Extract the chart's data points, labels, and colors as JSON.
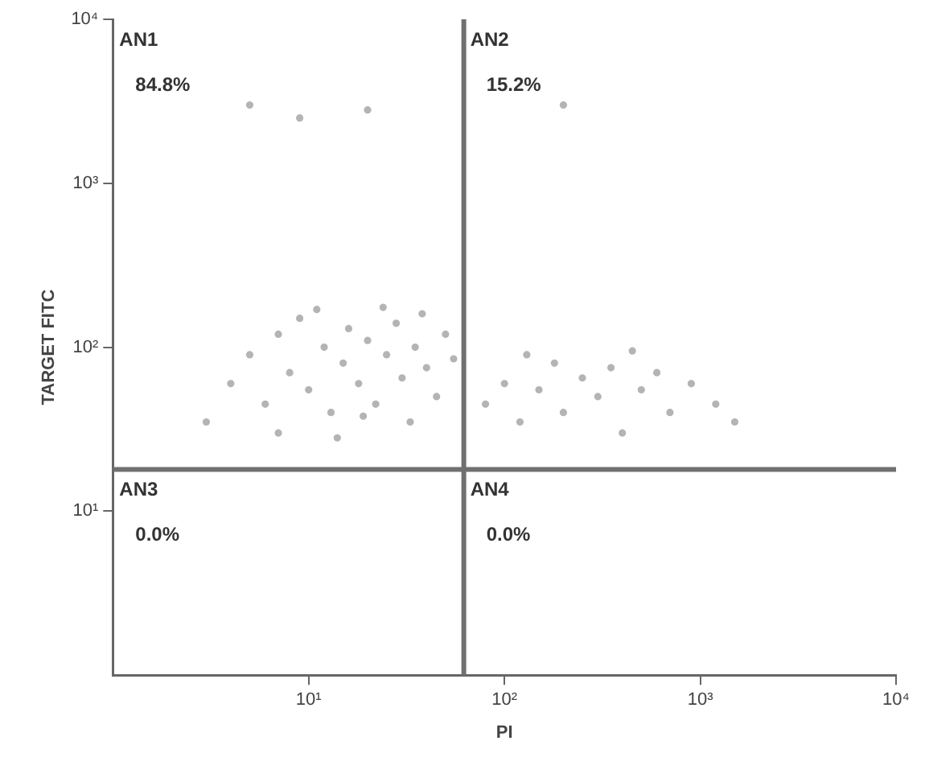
{
  "chart_data": {
    "type": "scatter",
    "xlabel": "PI",
    "ylabel": "TARGET FITC",
    "xlim": [
      1,
      10000
    ],
    "ylim": [
      1,
      10000
    ],
    "xticks": [
      {
        "value": 10,
        "label": "10¹"
      },
      {
        "value": 100,
        "label": "10²"
      },
      {
        "value": 1000,
        "label": "10³"
      },
      {
        "value": 10000,
        "label": "10⁴"
      }
    ],
    "yticks": [
      {
        "value": 10,
        "label": "10¹"
      },
      {
        "value": 100,
        "label": "10²"
      },
      {
        "value": 1000,
        "label": "10³"
      },
      {
        "value": 10000,
        "label": "10⁴"
      }
    ],
    "log": "xy",
    "grid": false,
    "legend": false,
    "marker": "circle",
    "series": [
      {
        "color": "#b4b4b4",
        "x": [
          4,
          5,
          6,
          7,
          8,
          9,
          10,
          12,
          13,
          15,
          16,
          18,
          20,
          22,
          25,
          28,
          30,
          33,
          35,
          40,
          45,
          50,
          55,
          3,
          7,
          11,
          24,
          38,
          19,
          14,
          80,
          100,
          120,
          150,
          180,
          200,
          250,
          300,
          350,
          400,
          500,
          600,
          700,
          900,
          1200,
          1500,
          130,
          450,
          5,
          9,
          20,
          200
        ],
        "values": [
          60,
          90,
          45,
          120,
          70,
          150,
          55,
          100,
          40,
          80,
          130,
          60,
          110,
          45,
          90,
          140,
          65,
          35,
          100,
          75,
          50,
          120,
          85,
          35,
          30,
          170,
          175,
          160,
          38,
          28,
          45,
          60,
          35,
          55,
          80,
          40,
          65,
          50,
          75,
          30,
          55,
          70,
          40,
          60,
          45,
          35,
          90,
          95,
          3000,
          2500,
          2800,
          3000
        ]
      }
    ],
    "ref_lines": [
      {
        "axis": "x",
        "value": 62,
        "color": "#707070"
      },
      {
        "axis": "y",
        "value": 18,
        "color": "#707070"
      }
    ],
    "annotations": [
      "AN1",
      "84.8%",
      "AN2",
      "15.2%",
      "AN3",
      "0.0%",
      "AN4",
      "0.0%"
    ]
  }
}
